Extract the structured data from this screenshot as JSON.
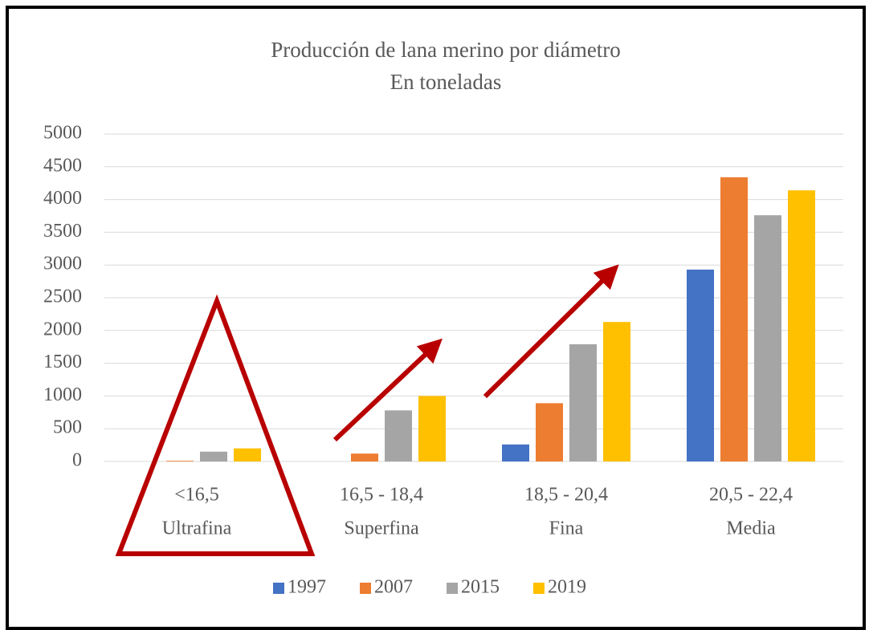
{
  "chart_data": {
    "type": "bar",
    "title": "Producción de lana merino por diámetro",
    "subtitle": "En toneladas",
    "categories": [
      [
        "<16,5",
        "Ultrafina"
      ],
      [
        "16,5 - 18,4",
        "Superfina"
      ],
      [
        "18,5 - 20,4",
        "Fina"
      ],
      [
        "20,5 - 22,4",
        "Media"
      ]
    ],
    "series": [
      {
        "name": "1997",
        "color": "#4472c4",
        "values": [
          0,
          0,
          260,
          2930
        ]
      },
      {
        "name": "2007",
        "color": "#ed7d31",
        "values": [
          10,
          120,
          890,
          4340
        ]
      },
      {
        "name": "2015",
        "color": "#a5a5a5",
        "values": [
          150,
          780,
          1790,
          3760
        ]
      },
      {
        "name": "2019",
        "color": "#ffc000",
        "values": [
          200,
          1000,
          2130,
          4140
        ]
      }
    ],
    "ylim": [
      0,
      5000
    ],
    "yticks": [
      0,
      500,
      1000,
      1500,
      2000,
      2500,
      3000,
      3500,
      4000,
      4500,
      5000
    ],
    "grid": true,
    "legend": "bottom"
  }
}
